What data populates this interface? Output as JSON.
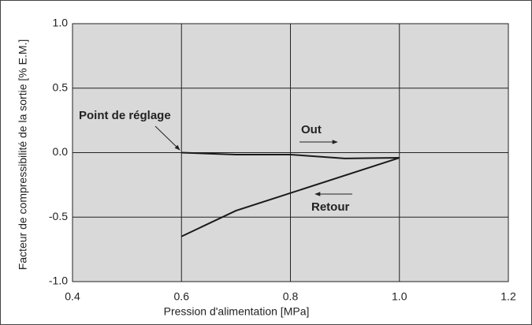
{
  "chart_data": {
    "type": "line",
    "xlabel": "Pression d'alimentation [MPa]",
    "ylabel": "Facteur de compressibilité de la sortie [% E.M.]",
    "xlim": [
      0.4,
      1.2
    ],
    "xticks": [
      0.4,
      0.6,
      0.8,
      {
        "value": 1.0,
        "label": "1.0"
      },
      1.2
    ],
    "ylim": [
      -1.0,
      1.0
    ],
    "yticks": [
      {
        "value": 1.0,
        "label": "1.0"
      },
      0.5,
      {
        "value": 0.0,
        "label": "0.0"
      },
      -0.5,
      {
        "value": -1.0,
        "label": "-1.0"
      }
    ],
    "grid": true,
    "background": "#d9d9d9",
    "series": [
      {
        "name": "Out",
        "color": "#1a1a1a",
        "x": [
          0.6,
          0.7,
          0.8,
          0.9,
          1.0
        ],
        "values": [
          0,
          -0.015,
          -0.015,
          -0.045,
          -0.04
        ]
      },
      {
        "name": "Retour",
        "color": "#1a1a1a",
        "x": [
          1.0,
          0.7,
          0.6
        ],
        "values": [
          -0.04,
          -0.45,
          -0.65
        ]
      }
    ],
    "annotations": [
      "Point de réglage"
    ]
  }
}
